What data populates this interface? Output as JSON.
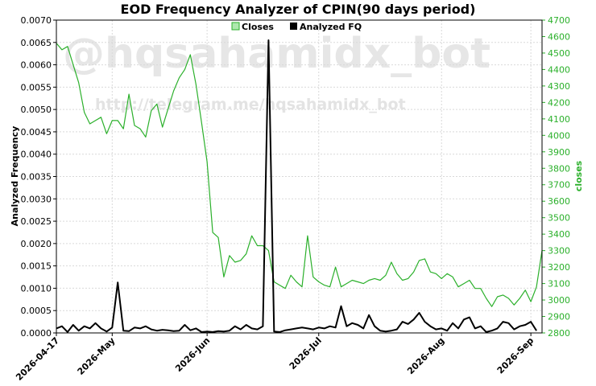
{
  "chart_data": {
    "type": "line",
    "title": "EOD Frequency Analyzer of CPIN(90 days period)",
    "watermarks": [
      "@hqsahamidx_bot",
      "http://telegram.me/hqsahamidx_bot"
    ],
    "ylabel_left": "Analyzed Frequency",
    "ylabel_right": "closes",
    "y_left": {
      "min": 0,
      "max": 0.007,
      "ticks": [
        "0.0000",
        "0.0005",
        "0.0010",
        "0.0015",
        "0.0020",
        "0.0025",
        "0.0030",
        "0.0035",
        "0.0040",
        "0.0045",
        "0.0050",
        "0.0055",
        "0.0060",
        "0.0065",
        "0.0070"
      ]
    },
    "y_right": {
      "min": 2800,
      "max": 4700,
      "ticks": [
        "2800",
        "2900",
        "3000",
        "3100",
        "3200",
        "3300",
        "3400",
        "3500",
        "3600",
        "3700",
        "3800",
        "3900",
        "4000",
        "4100",
        "4200",
        "4300",
        "4400",
        "4500",
        "4600",
        "4700"
      ]
    },
    "x_tick_labels": [
      "2026-04-17",
      "2026-May",
      "2026-Jun",
      "2026-Jul",
      "2026-Aug",
      "2026-Sep"
    ],
    "x_tick_positions": [
      0,
      10,
      27,
      47,
      69,
      85
    ],
    "grid": true,
    "legend_position": "top-center",
    "series": [
      {
        "name": "Closes",
        "color": "#2bb02b",
        "axis": "right",
        "values": [
          4560,
          4520,
          4540,
          4430,
          4320,
          4140,
          4070,
          4090,
          4110,
          4010,
          4090,
          4090,
          4040,
          4250,
          4060,
          4040,
          3990,
          4150,
          4190,
          4050,
          4160,
          4270,
          4350,
          4400,
          4490,
          4310,
          4080,
          3840,
          3410,
          3380,
          3140,
          3270,
          3230,
          3240,
          3280,
          3390,
          3330,
          3330,
          3300,
          3110,
          3090,
          3070,
          3150,
          3110,
          3080,
          3390,
          3140,
          3110,
          3090,
          3080,
          3200,
          3080,
          3100,
          3120,
          3110,
          3100,
          3120,
          3130,
          3120,
          3150,
          3230,
          3160,
          3120,
          3130,
          3170,
          3240,
          3250,
          3170,
          3160,
          3130,
          3160,
          3140,
          3080,
          3100,
          3120,
          3070,
          3070,
          3010,
          2960,
          3020,
          3030,
          3010,
          2970,
          3010,
          3060,
          2990,
          3080,
          3300
        ]
      },
      {
        "name": "Analyzed FQ",
        "color": "#000000",
        "axis": "left",
        "values": [
          0.0001,
          0.00015,
          2e-05,
          0.00018,
          5e-05,
          0.00015,
          0.0001,
          0.00022,
          0.0001,
          3e-05,
          0.00012,
          0.00113,
          5e-05,
          4e-05,
          0.00012,
          0.0001,
          0.00015,
          8e-05,
          5e-05,
          7e-05,
          6e-05,
          4e-05,
          5e-05,
          0.00018,
          6e-05,
          0.0001,
          2e-05,
          3e-05,
          2e-05,
          4e-05,
          3e-05,
          5e-05,
          0.00015,
          8e-05,
          0.00018,
          0.0001,
          8e-05,
          0.00015,
          0.00655,
          3e-05,
          2e-05,
          6e-05,
          8e-05,
          0.0001,
          0.00012,
          0.0001,
          8e-05,
          0.00012,
          0.0001,
          0.00015,
          0.00012,
          0.0006,
          0.00015,
          0.00022,
          0.00018,
          0.0001,
          0.0004,
          0.00015,
          5e-05,
          3e-05,
          5e-05,
          8e-05,
          0.00025,
          0.0002,
          0.0003,
          0.00045,
          0.00025,
          0.00015,
          8e-05,
          0.0001,
          5e-05,
          0.00022,
          0.0001,
          0.0003,
          0.00035,
          0.0001,
          0.00015,
          2e-05,
          5e-05,
          0.0001,
          0.00025,
          0.00022,
          8e-05,
          0.00015,
          0.00018,
          0.00025,
          5e-05
        ]
      }
    ]
  }
}
